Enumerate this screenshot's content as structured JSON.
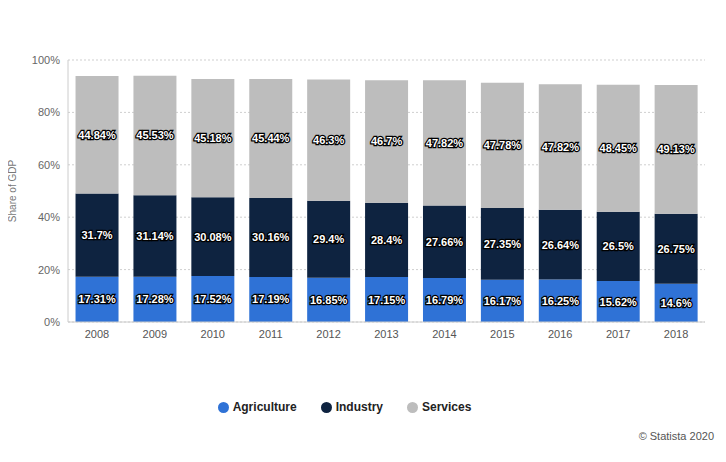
{
  "chart_data": {
    "type": "bar",
    "stacked": true,
    "data_labels": true,
    "grid": true,
    "legend": "bottom",
    "y_label": "Share of GDP",
    "annotations": [
      "© Statista 2020"
    ],
    "categories": [
      "2008",
      "2009",
      "2010",
      "2011",
      "2012",
      "2013",
      "2014",
      "2015",
      "2016",
      "2017",
      "2018"
    ],
    "ylim": [
      0,
      100
    ],
    "yticks": [
      {
        "value": 0,
        "label": "0%"
      },
      {
        "value": 20,
        "label": "20%"
      },
      {
        "value": 40,
        "label": "40%"
      },
      {
        "value": 60,
        "label": "60%"
      },
      {
        "value": 80,
        "label": "80%"
      },
      {
        "value": 100,
        "label": "100%"
      }
    ],
    "series": [
      {
        "name": "Agriculture",
        "color": "#2f72d6",
        "values": [
          17.31,
          17.28,
          17.52,
          17.19,
          16.85,
          17.15,
          16.79,
          16.17,
          16.25,
          15.62,
          14.6
        ],
        "value_labels": [
          "17.31%",
          "17.28%",
          "17.52%",
          "17.19%",
          "16.85%",
          "17.15%",
          "16.79%",
          "16.17%",
          "16.25%",
          "15.62%",
          "14.6%"
        ]
      },
      {
        "name": "Industry",
        "color": "#0e2340",
        "values": [
          31.7,
          31.14,
          30.08,
          30.16,
          29.4,
          28.4,
          27.66,
          27.35,
          26.64,
          26.5,
          26.75
        ],
        "value_labels": [
          "31.7%",
          "31.14%",
          "30.08%",
          "30.16%",
          "29.4%",
          "28.4%",
          "27.66%",
          "27.35%",
          "26.64%",
          "26.5%",
          "26.75%"
        ]
      },
      {
        "name": "Services",
        "color": "#bdbdbd",
        "values": [
          44.84,
          45.53,
          45.18,
          45.44,
          46.3,
          46.7,
          47.82,
          47.78,
          47.82,
          48.45,
          49.13
        ],
        "value_labels": [
          "44.84%",
          "45.53%",
          "45.18%",
          "45.44%",
          "46.3%",
          "46.7%",
          "47.82%",
          "47.78%",
          "47.82%",
          "48.45%",
          "49.13%"
        ]
      }
    ]
  }
}
